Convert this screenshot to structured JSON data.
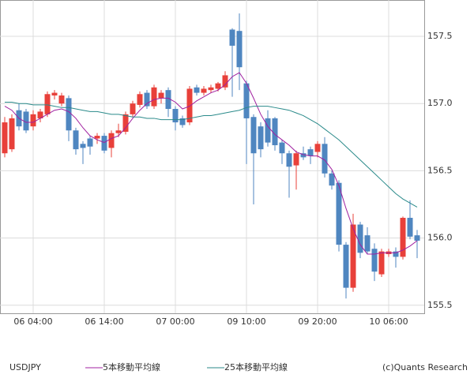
{
  "chart_data": {
    "type": "candlestick",
    "symbol": "USDJPY",
    "credit": "(c)Quants Research",
    "categories": [
      null,
      null,
      null,
      null,
      "06 04:00",
      null,
      null,
      null,
      null,
      null,
      null,
      null,
      null,
      null,
      "06 14:00",
      null,
      null,
      null,
      null,
      null,
      null,
      null,
      null,
      null,
      "07 00:00",
      null,
      null,
      null,
      null,
      null,
      null,
      null,
      null,
      null,
      "09 10:00",
      null,
      null,
      null,
      null,
      null,
      null,
      null,
      null,
      null,
      "09 20:00",
      null,
      null,
      null,
      null,
      null,
      null,
      null,
      null,
      null,
      "10 06:00",
      null,
      null,
      null,
      null
    ],
    "open": [
      156.63,
      156.66,
      156.95,
      156.94,
      156.83,
      156.89,
      156.92,
      157.06,
      157.0,
      157.04,
      156.8,
      156.7,
      156.74,
      156.74,
      156.76,
      156.67,
      156.78,
      156.79,
      156.92,
      156.99,
      157.08,
      156.98,
      157.04,
      157.1,
      156.96,
      156.89,
      156.86,
      157.12,
      157.08,
      157.1,
      157.11,
      157.12,
      157.55,
      157.54,
      157.15,
      156.9,
      156.83,
      156.89,
      156.89,
      156.71,
      156.63,
      156.54,
      156.63,
      156.66,
      156.64,
      156.7,
      156.48,
      156.41,
      155.95,
      155.63,
      156.1,
      156.02,
      155.92,
      155.73,
      155.88,
      155.9,
      155.86,
      156.15,
      156.02
    ],
    "high": [
      156.9,
      156.92,
      157.0,
      156.96,
      156.95,
      156.96,
      157.09,
      157.1,
      157.08,
      157.06,
      156.82,
      156.72,
      156.76,
      156.78,
      156.78,
      156.8,
      156.85,
      156.94,
      157.02,
      157.09,
      157.1,
      157.14,
      157.1,
      157.12,
      156.98,
      156.91,
      157.13,
      157.14,
      157.13,
      157.14,
      157.16,
      157.24,
      157.56,
      157.67,
      157.17,
      156.92,
      156.86,
      156.95,
      156.9,
      156.73,
      156.65,
      156.65,
      156.68,
      156.68,
      156.72,
      156.75,
      156.5,
      156.43,
      155.97,
      156.18,
      156.12,
      156.08,
      155.96,
      155.92,
      155.92,
      155.93,
      156.16,
      156.28,
      156.06
    ],
    "low": [
      156.6,
      156.64,
      156.8,
      156.78,
      156.8,
      156.86,
      156.9,
      157.03,
      156.98,
      156.72,
      156.62,
      156.55,
      156.62,
      156.7,
      156.63,
      156.6,
      156.75,
      156.77,
      156.9,
      156.97,
      156.96,
      156.96,
      157.0,
      156.9,
      156.8,
      156.82,
      156.84,
      157.06,
      157.06,
      157.08,
      157.09,
      157.1,
      157.05,
      157.1,
      156.55,
      156.25,
      156.6,
      156.68,
      156.65,
      156.55,
      156.3,
      156.36,
      156.58,
      156.55,
      156.6,
      156.45,
      156.36,
      155.9,
      155.55,
      155.6,
      155.85,
      155.88,
      155.68,
      155.71,
      155.86,
      155.78,
      155.84,
      155.99,
      155.85
    ],
    "close": [
      156.86,
      156.89,
      156.83,
      156.8,
      156.92,
      156.94,
      157.07,
      157.08,
      157.06,
      156.8,
      156.66,
      156.67,
      156.68,
      156.76,
      156.65,
      156.78,
      156.8,
      156.92,
      157.0,
      157.07,
      156.98,
      157.12,
      157.08,
      156.96,
      156.86,
      156.84,
      157.11,
      157.08,
      157.11,
      157.12,
      157.15,
      157.21,
      157.43,
      157.27,
      156.89,
      156.63,
      156.66,
      156.71,
      156.69,
      156.63,
      156.53,
      156.63,
      156.6,
      156.61,
      156.7,
      156.48,
      156.39,
      155.95,
      155.63,
      156.1,
      155.89,
      155.9,
      155.75,
      155.9,
      155.9,
      155.86,
      156.15,
      156.01,
      155.98
    ],
    "up_color": "#e8403a",
    "down_color": "#4f86c0",
    "series": [
      {
        "name": "5本移動平均線",
        "color": "#a020a0",
        "values": [
          156.98,
          156.95,
          156.89,
          156.86,
          156.86,
          156.89,
          156.92,
          156.95,
          156.96,
          156.94,
          156.89,
          156.82,
          156.76,
          156.73,
          156.71,
          156.74,
          156.76,
          156.82,
          156.89,
          156.95,
          157.0,
          157.03,
          157.04,
          157.04,
          157.01,
          156.96,
          156.98,
          157.02,
          157.05,
          157.08,
          157.1,
          157.14,
          157.2,
          157.23,
          157.15,
          157.04,
          156.92,
          156.83,
          156.77,
          156.73,
          156.69,
          156.64,
          156.62,
          156.61,
          156.61,
          156.58,
          156.51,
          156.39,
          156.22,
          156.07,
          155.95,
          155.88,
          155.88,
          155.89,
          155.89,
          155.89,
          155.91,
          155.94,
          155.98
        ]
      },
      {
        "name": "25本移動平均線",
        "color": "#2a8a8a",
        "values": [
          157.01,
          157.01,
          157.0,
          157.0,
          156.99,
          156.99,
          156.99,
          156.98,
          156.97,
          156.97,
          156.96,
          156.95,
          156.94,
          156.94,
          156.93,
          156.92,
          156.92,
          156.91,
          156.9,
          156.9,
          156.89,
          156.89,
          156.88,
          156.88,
          156.88,
          156.88,
          156.89,
          156.9,
          156.91,
          156.91,
          156.92,
          156.93,
          156.94,
          156.95,
          156.97,
          156.98,
          156.98,
          156.98,
          156.97,
          156.96,
          156.95,
          156.93,
          156.91,
          156.88,
          156.85,
          156.81,
          156.77,
          156.73,
          156.68,
          156.63,
          156.58,
          156.53,
          156.48,
          156.43,
          156.38,
          156.33,
          156.29,
          156.26,
          156.23
        ]
      }
    ],
    "ylim": [
      155.44,
      157.77
    ],
    "yticks": [
      155.5,
      {
        "value": 156,
        "label": "156.0"
      },
      156.5,
      {
        "value": 157,
        "label": "157.0"
      },
      157.5
    ],
    "grid": true
  }
}
